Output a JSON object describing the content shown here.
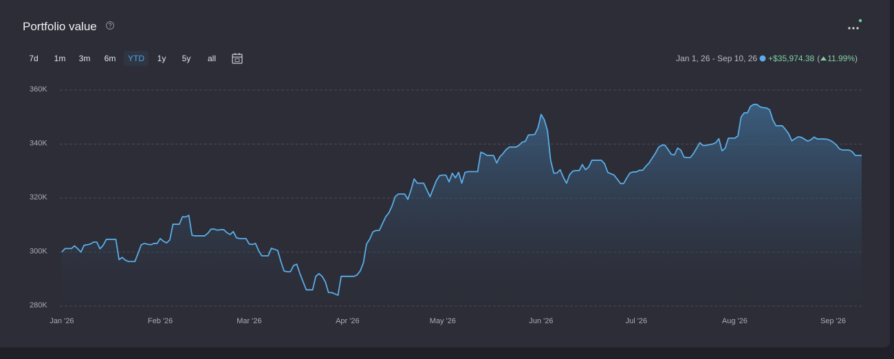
{
  "header": {
    "title": "Portfolio value",
    "range_buttons": [
      "7d",
      "1m",
      "3m",
      "6m",
      "YTD",
      "1y",
      "5y",
      "all"
    ],
    "active_range": "YTD"
  },
  "summary": {
    "range": "Jan 1, 26 - Sep 10, 26",
    "change": "+$35,974.38",
    "open": "(",
    "change_percent": "11.99%",
    "close": ")"
  },
  "chart_data": {
    "type": "area",
    "categories": [
      "Jan '26",
      null,
      null,
      null,
      null,
      null,
      null,
      null,
      null,
      null,
      null,
      null,
      null,
      null,
      null,
      null,
      null,
      null,
      null,
      null,
      null,
      null,
      null,
      null,
      null,
      null,
      null,
      null,
      null,
      null,
      null,
      "Feb '26",
      null,
      null,
      null,
      null,
      null,
      null,
      null,
      null,
      null,
      null,
      null,
      null,
      null,
      null,
      null,
      null,
      null,
      null,
      null,
      null,
      null,
      null,
      null,
      null,
      null,
      null,
      null,
      "Mar '26",
      null,
      null,
      null,
      null,
      null,
      null,
      null,
      null,
      null,
      null,
      null,
      null,
      null,
      null,
      null,
      null,
      null,
      null,
      null,
      null,
      null,
      null,
      null,
      null,
      null,
      null,
      null,
      null,
      null,
      null,
      "Apr '26",
      null,
      null,
      null,
      null,
      null,
      null,
      null,
      null,
      null,
      null,
      null,
      null,
      null,
      null,
      null,
      null,
      null,
      null,
      null,
      null,
      null,
      null,
      null,
      null,
      null,
      null,
      null,
      null,
      null,
      "May '26",
      null,
      null,
      null,
      null,
      null,
      null,
      null,
      null,
      null,
      null,
      null,
      null,
      null,
      null,
      null,
      null,
      null,
      null,
      null,
      null,
      null,
      null,
      null,
      null,
      null,
      null,
      null,
      null,
      null,
      null,
      "Jun '26",
      null,
      null,
      null,
      null,
      null,
      null,
      null,
      null,
      null,
      null,
      null,
      null,
      null,
      null,
      null,
      null,
      null,
      null,
      null,
      null,
      null,
      null,
      null,
      null,
      null,
      null,
      null,
      null,
      null,
      "Jul '26",
      null,
      null,
      null,
      null,
      null,
      null,
      null,
      null,
      null,
      null,
      null,
      null,
      null,
      null,
      null,
      null,
      null,
      null,
      null,
      null,
      null,
      null,
      null,
      null,
      null,
      null,
      null,
      null,
      null,
      null,
      "Aug '26",
      null,
      null,
      null,
      null,
      null,
      null,
      null,
      null,
      null,
      null,
      null,
      null,
      null,
      null,
      null,
      null,
      null,
      null,
      null,
      null,
      null,
      null,
      null,
      null,
      null,
      null,
      null,
      null,
      null,
      null,
      "Sep '26",
      null,
      null,
      null,
      null,
      null,
      null,
      null,
      null,
      null
    ],
    "values": [
      300000,
      301300,
      301300,
      301300,
      302300,
      301200,
      300000,
      302500,
      302700,
      303000,
      303700,
      303700,
      301200,
      302500,
      304700,
      304700,
      304700,
      304700,
      297200,
      298000,
      297000,
      296500,
      296500,
      296500,
      299500,
      302700,
      303200,
      302900,
      302700,
      303200,
      303200,
      305000,
      304000,
      303400,
      304500,
      310300,
      310300,
      310300,
      313100,
      313000,
      313600,
      306200,
      306000,
      306000,
      306000,
      306000,
      307000,
      308500,
      308500,
      308100,
      308300,
      308300,
      307200,
      306500,
      307600,
      305300,
      305000,
      305000,
      305000,
      303000,
      302800,
      303200,
      300500,
      298600,
      298600,
      298600,
      301400,
      301000,
      300600,
      296500,
      293000,
      292700,
      292700,
      295000,
      295500,
      292000,
      289000,
      286000,
      286000,
      286000,
      291000,
      292000,
      291000,
      289000,
      285000,
      285000,
      284500,
      284000,
      291000,
      291000,
      291000,
      291000,
      291000,
      291500,
      293000,
      296000,
      303000,
      304800,
      307500,
      308000,
      308000,
      310500,
      313000,
      314500,
      317000,
      320500,
      321500,
      321500,
      321500,
      319500,
      323000,
      327100,
      325500,
      325500,
      325500,
      323000,
      320500,
      323500,
      326500,
      328300,
      328500,
      328500,
      326000,
      329200,
      327500,
      329500,
      325500,
      329500,
      329800,
      329800,
      329800,
      329800,
      337000,
      336500,
      335800,
      335800,
      335800,
      333000,
      335300,
      336500,
      338000,
      338900,
      338900,
      338900,
      339500,
      340700,
      341000,
      343400,
      343400,
      343600,
      346000,
      351000,
      349000,
      345000,
      334000,
      329200,
      329300,
      330500,
      327700,
      325500,
      328700,
      330000,
      330200,
      330200,
      332400,
      330500,
      331500,
      334000,
      334000,
      334000,
      334000,
      332700,
      329500,
      329000,
      328500,
      327000,
      325400,
      325400,
      327500,
      329300,
      329700,
      329700,
      330300,
      330300,
      331800,
      333000,
      334800,
      336600,
      338800,
      339600,
      339600,
      338000,
      336200,
      336000,
      338500,
      337800,
      335200,
      335000,
      335000,
      336500,
      338500,
      340500,
      339500,
      339500,
      339800,
      340000,
      340500,
      342000,
      337500,
      338500,
      342200,
      342200,
      342200,
      343000,
      350000,
      351600,
      351600,
      354000,
      354700,
      354700,
      353800,
      353500,
      353400,
      352700,
      349000,
      346800,
      346800,
      346800,
      345400,
      343800,
      341200,
      342000,
      342700,
      342500,
      341800,
      341100,
      341600,
      342600,
      341900,
      341900,
      341900,
      341800,
      341400,
      340700,
      339700,
      338200,
      337800,
      337800,
      337800,
      337200,
      335800,
      335800,
      335800
    ],
    "color": "#5aaee8",
    "ylim": [
      280000,
      360000
    ],
    "yticks": [
      {
        "value": 280000,
        "label": "280K"
      },
      {
        "value": 300000,
        "label": "300K"
      },
      {
        "value": 320000,
        "label": "320K"
      },
      {
        "value": 340000,
        "label": "340K"
      },
      {
        "value": 360000,
        "label": "360K"
      }
    ],
    "grid": true
  }
}
